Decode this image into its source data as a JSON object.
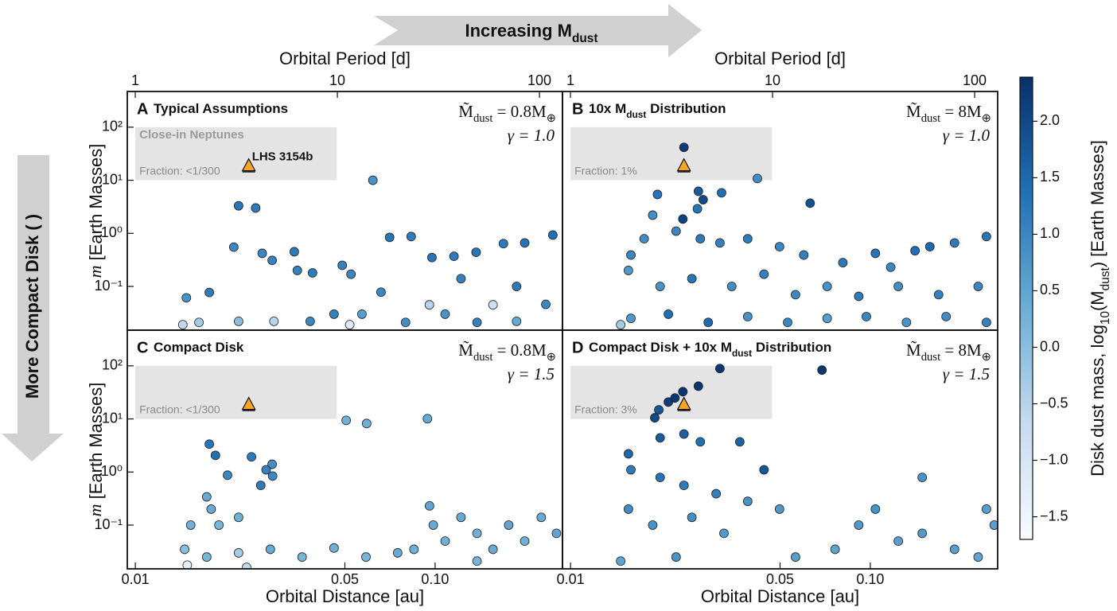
{
  "chart_data": [
    {
      "type": "scatter",
      "letter": "A",
      "title": [
        "Typical Assumptions"
      ],
      "mass_annotation": [
        "M̃",
        "dust",
        " = 0.8M",
        "⊕"
      ],
      "gamma": "γ = 1.0",
      "region": {
        "label": "Close-in Neptunes",
        "fraction": "Fraction: <1/300",
        "x": [
          0.01,
          0.047
        ],
        "y": [
          10,
          100
        ]
      },
      "planet": {
        "name": "LHS 3154b",
        "x": 0.0239,
        "y": 18.6,
        "y_low": 14.4,
        "color": "#f5a623"
      },
      "x2label": "Orbital Period [d]",
      "x2lim": [
        0.913,
        130
      ],
      "x2ticks": [
        1,
        10,
        100
      ],
      "ylabel": [
        "m",
        " [Earth Masses]"
      ],
      "yticks": [
        {
          "value": 100,
          "label": "10²"
        },
        {
          "value": 10,
          "label": "10¹"
        },
        {
          "value": 1,
          "label": "10⁰"
        },
        {
          "value": 0.1,
          "label": "10⁻¹"
        }
      ],
      "xlim": [
        0.0094,
        0.266
      ],
      "ylim": [
        0.015,
        470
      ],
      "log_x": true,
      "log_y": true,
      "x": [
        0.0221,
        0.0252,
        0.062,
        0.0213,
        0.01765,
        0.0148,
        0.0265,
        0.0286,
        0.0339,
        0.0347,
        0.039,
        0.049,
        0.0524,
        0.0705,
        0.0832,
        0.0976,
        0.1156,
        0.137,
        0.169,
        0.199,
        0.247,
        0.0957,
        0.066,
        0.057,
        0.046,
        0.156,
        0.234,
        0.0221,
        0.029,
        0.0383,
        0.0163,
        0.0144,
        0.0797,
        0.108,
        0.138,
        0.187,
        0.0519,
        0.122,
        0.187
      ],
      "values": [
        3.3,
        3.0,
        10,
        0.55,
        0.077,
        0.061,
        0.42,
        0.31,
        0.45,
        0.2,
        0.18,
        0.25,
        0.17,
        0.84,
        0.87,
        0.35,
        0.37,
        0.44,
        0.64,
        0.66,
        0.93,
        0.045,
        0.078,
        0.03,
        0.03,
        0.045,
        0.046,
        0.022,
        0.022,
        0.022,
        0.021,
        0.019,
        0.021,
        0.03,
        0.021,
        0.022,
        0.019,
        0.14,
        0.1
      ],
      "c": [
        1.3,
        1.2,
        0.8,
        1.0,
        1.2,
        0.8,
        1.0,
        1.1,
        1.2,
        1.1,
        1.2,
        1.1,
        1.0,
        1.3,
        1.2,
        1.3,
        1.2,
        1.3,
        1.2,
        1.3,
        1.4,
        -0.5,
        1.0,
        0.6,
        1.1,
        -0.8,
        1.0,
        0.0,
        -0.5,
        1.0,
        -0.3,
        -0.6,
        0.9,
        0.8,
        1.1,
        0.4,
        -1.2,
        1.1,
        1.2
      ]
    },
    {
      "type": "scatter",
      "letter": "B",
      "title": [
        "10x M",
        "dust",
        " Distribution"
      ],
      "mass_annotation": [
        "M̃",
        "dust",
        " = 8M",
        "⊕"
      ],
      "gamma": "γ = 1.0",
      "region": {
        "fraction": "Fraction: 1%",
        "x": [
          0.01,
          0.047
        ],
        "y": [
          10,
          100
        ]
      },
      "planet": {
        "x": 0.0239,
        "y": 18.6,
        "y_low": 14.4,
        "color": "#f5a623"
      },
      "x2label": "Orbital Period [d]",
      "x2lim": [
        0.913,
        130
      ],
      "x2ticks": [
        1,
        10,
        100
      ],
      "xlim": [
        0.0094,
        0.266
      ],
      "ylim": [
        0.015,
        470
      ],
      "log_x": true,
      "log_y": true,
      "x": [
        0.0239,
        0.0195,
        0.0267,
        0.0277,
        0.0265,
        0.0237,
        0.0319,
        0.042,
        0.063,
        0.0188,
        0.0176,
        0.0159,
        0.0156,
        0.0225,
        0.0271,
        0.0315,
        0.039,
        0.0498,
        0.06,
        0.081,
        0.104,
        0.141,
        0.191,
        0.244,
        0.158,
        0.117,
        0.0199,
        0.0254,
        0.0345,
        0.0442,
        0.0563,
        0.0718,
        0.0915,
        0.124,
        0.169,
        0.229,
        0.0159,
        0.0212,
        0.0288,
        0.039,
        0.053,
        0.0718,
        0.097,
        0.132,
        0.179,
        0.244,
        0.0147
      ],
      "values": [
        41.6,
        5.4,
        6.2,
        4.3,
        2.9,
        1.86,
        5.8,
        10.8,
        3.7,
        2.2,
        0.79,
        0.39,
        0.2,
        1.1,
        0.79,
        0.66,
        0.79,
        0.56,
        0.39,
        0.28,
        0.42,
        0.47,
        0.66,
        0.87,
        0.56,
        0.23,
        0.1,
        0.14,
        0.1,
        0.17,
        0.07,
        0.1,
        0.065,
        0.1,
        0.07,
        0.1,
        0.025,
        0.03,
        0.021,
        0.027,
        0.021,
        0.025,
        0.027,
        0.021,
        0.027,
        0.021,
        0.019
      ],
      "c": [
        2.2,
        1.3,
        1.7,
        2.0,
        1.3,
        2.1,
        1.4,
        0.9,
        1.9,
        0.9,
        0.9,
        1.0,
        0.7,
        1.0,
        1.2,
        1.1,
        1.2,
        1.0,
        1.1,
        1.2,
        1.3,
        1.4,
        1.2,
        1.3,
        1.5,
        1.0,
        0.8,
        1.3,
        0.9,
        1.1,
        1.0,
        0.8,
        1.2,
        0.9,
        1.1,
        1.0,
        0.7,
        1.4,
        1.5,
        0.8,
        1.0,
        0.6,
        1.0,
        0.8,
        0.9,
        1.1,
        -0.3
      ]
    },
    {
      "type": "scatter",
      "letter": "C",
      "title": [
        "Compact Disk"
      ],
      "mass_annotation": [
        "M̃",
        "dust",
        " = 0.8M",
        "⊕"
      ],
      "gamma": "γ = 1.5",
      "region": {
        "fraction": "Fraction: <1/300",
        "x": [
          0.01,
          0.047
        ],
        "y": [
          10,
          100
        ]
      },
      "planet": {
        "x": 0.0239,
        "y": 18.6,
        "y_low": 14.4,
        "color": "#f5a623"
      },
      "xlabel": "Orbital Distance [au]",
      "xticks": [
        0.01,
        0.05,
        {
          "value": 0.1,
          "label": "0.10"
        }
      ],
      "ylabel": [
        "m",
        " [Earth Masses]"
      ],
      "yticks": [
        {
          "value": 100,
          "label": "10²"
        },
        {
          "value": 10,
          "label": "10¹"
        },
        {
          "value": 1,
          "label": "10⁰"
        },
        {
          "value": 0.1,
          "label": "10⁻¹"
        }
      ],
      "xlim": [
        0.0094,
        0.266
      ],
      "ylim": [
        0.015,
        470
      ],
      "log_x": true,
      "log_y": true,
      "x": [
        0.01765,
        0.0185,
        0.0244,
        0.0286,
        0.0273,
        0.0287,
        0.0203,
        0.0173,
        0.0262,
        0.0505,
        0.0591,
        0.0943,
        0.0153,
        0.0179,
        0.019,
        0.0221,
        0.0146,
        0.0173,
        0.0221,
        0.0282,
        0.036,
        0.046,
        0.0588,
        0.075,
        0.0958,
        0.0986,
        0.108,
        0.122,
        0.138,
        0.156,
        0.176,
        0.199,
        0.226,
        0.254,
        0.085,
        0.138,
        0.0149,
        0.0235
      ],
      "values": [
        3.35,
        2.06,
        1.93,
        1.4,
        1.1,
        0.84,
        0.87,
        0.34,
        0.56,
        9.4,
        8.2,
        10.1,
        0.1,
        0.2,
        0.1,
        0.14,
        0.035,
        0.025,
        0.03,
        0.035,
        0.025,
        0.037,
        0.025,
        0.03,
        0.23,
        0.1,
        0.05,
        0.14,
        0.07,
        0.035,
        0.1,
        0.05,
        0.14,
        0.07,
        0.035,
        0.021,
        0.0176,
        0.016
      ],
      "c": [
        1.3,
        1.4,
        1.2,
        0.9,
        1.1,
        1.0,
        1.0,
        0.4,
        1.2,
        0.3,
        0.3,
        0.4,
        0.3,
        0.4,
        0.2,
        0.3,
        0.0,
        0.2,
        -0.3,
        0.4,
        0.2,
        0.3,
        0.2,
        0.4,
        0.5,
        0.4,
        0.3,
        0.4,
        0.3,
        0.4,
        0.5,
        0.3,
        0.4,
        0.5,
        0.3,
        0.2,
        -1.3,
        -0.6
      ]
    },
    {
      "type": "scatter",
      "letter": "D",
      "title": [
        "Compact Disk + 10x M",
        "dust",
        " Distribution"
      ],
      "mass_annotation": [
        "M̃",
        "dust",
        " = 8M",
        "⊕"
      ],
      "gamma": "γ = 1.5",
      "region": {
        "fraction": "Fraction: 3%",
        "x": [
          0.01,
          0.047
        ],
        "y": [
          10,
          100
        ]
      },
      "planet": {
        "x": 0.0239,
        "y": 18.6,
        "y_low": 14.4,
        "color": "#f5a623"
      },
      "xlabel": "Orbital Distance [au]",
      "xticks": [
        0.01,
        0.05,
        {
          "value": 0.1,
          "label": "0.10"
        }
      ],
      "xlim": [
        0.0094,
        0.266
      ],
      "ylim": [
        0.015,
        470
      ],
      "log_x": true,
      "log_y": true,
      "x": [
        0.0191,
        0.0212,
        0.0223,
        0.0237,
        0.0267,
        0.0315,
        0.069,
        0.0197,
        0.0199,
        0.0239,
        0.0271,
        0.0367,
        0.0442,
        0.0156,
        0.0159,
        0.0199,
        0.0239,
        0.0306,
        0.039,
        0.0498,
        0.149,
        0.244,
        0.0156,
        0.0188,
        0.0254,
        0.0325,
        0.0563,
        0.0763,
        0.0915,
        0.104,
        0.124,
        0.149,
        0.191,
        0.229,
        0.259,
        0.0147,
        0.0225
      ],
      "values": [
        10.5,
        20.8,
        24.8,
        32.6,
        41.4,
        88.9,
        83.2,
        14.8,
        4.4,
        5.2,
        3.7,
        3.7,
        1.1,
        2.2,
        1.1,
        0.79,
        0.56,
        0.39,
        0.28,
        0.2,
        0.79,
        0.2,
        0.2,
        0.1,
        0.14,
        0.07,
        0.025,
        0.035,
        0.1,
        0.2,
        0.05,
        0.07,
        0.035,
        0.025,
        0.1,
        0.021,
        0.025
      ],
      "c": [
        2.0,
        2.2,
        2.3,
        2.3,
        2.3,
        2.3,
        2.3,
        1.8,
        1.7,
        1.6,
        1.4,
        1.6,
        1.8,
        1.5,
        1.2,
        1.3,
        1.2,
        1.1,
        0.8,
        0.7,
        0.8,
        0.6,
        0.9,
        0.8,
        0.9,
        0.7,
        0.6,
        0.5,
        0.7,
        0.8,
        0.6,
        0.7,
        0.6,
        0.5,
        0.6,
        0.5,
        0.8
      ]
    }
  ],
  "colorbar": {
    "label": [
      "Disk dust mass, log",
      "10",
      "(M",
      "dust",
      ") [Earth Masses]"
    ],
    "clim": [
      -1.7,
      2.39
    ],
    "colormap": [
      "#f7fbff",
      "#c6dbef",
      "#6baed6",
      "#2171b5",
      "#08306b"
    ],
    "ticks": [
      {
        "value": 2,
        "label": "2.0"
      },
      {
        "value": 1.5,
        "label": "1.5"
      },
      {
        "value": 1,
        "label": "1.0"
      },
      {
        "value": 0.5,
        "label": "0.5"
      },
      {
        "value": 0,
        "label": "0.0"
      },
      {
        "value": -0.5,
        "label": "−0.5"
      },
      {
        "value": -1,
        "label": "−1.0"
      },
      {
        "value": -1.5,
        "label": "−1.5"
      }
    ]
  },
  "arrows": {
    "horizontal": [
      "Increasing M",
      "dust"
    ],
    "vertical": "More Compact Disk ( )"
  }
}
